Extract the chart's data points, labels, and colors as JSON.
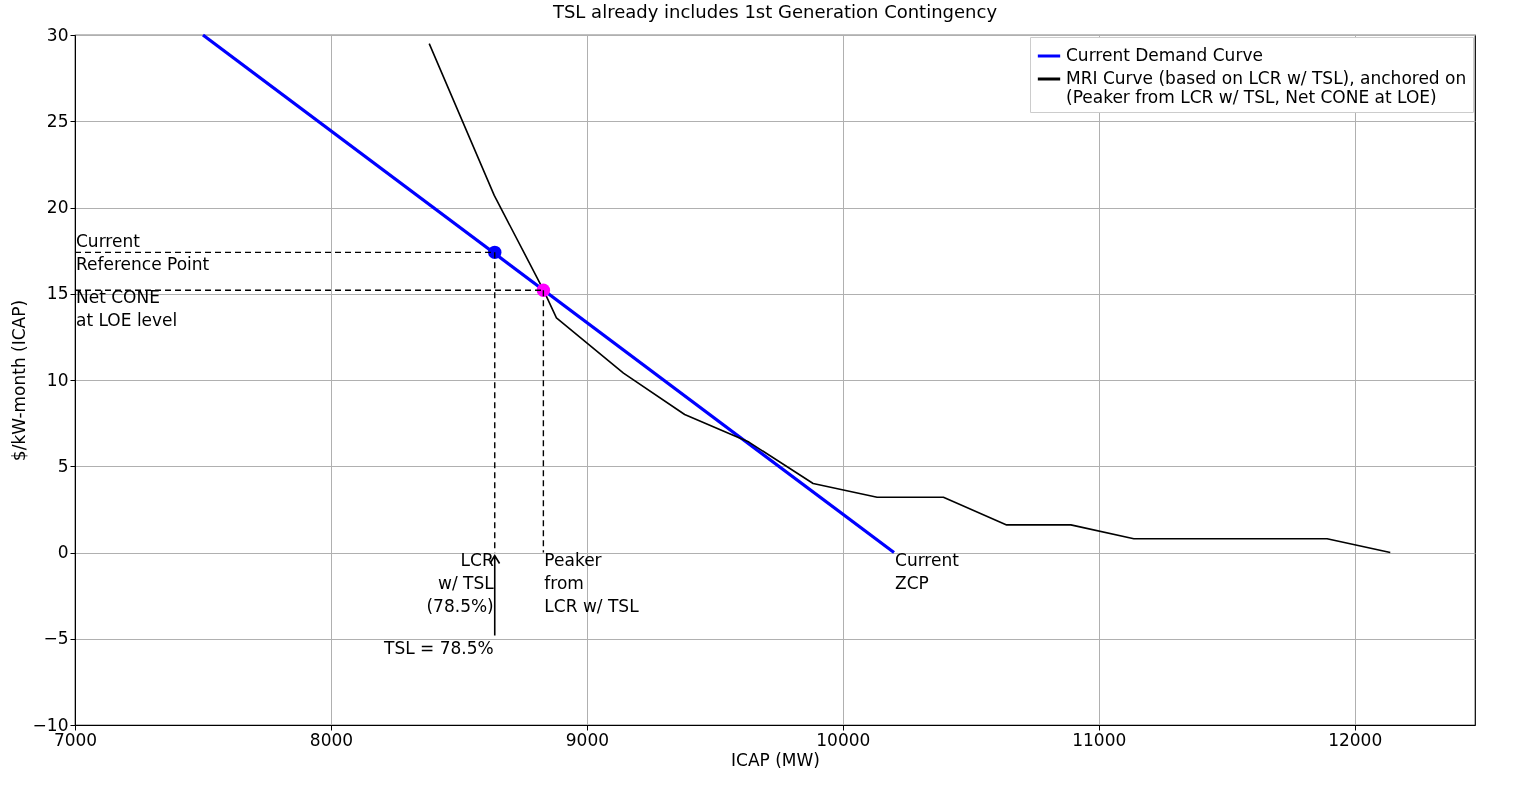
{
  "chart_data": {
    "type": "line",
    "title": "TSL already includes 1st Generation Contingency",
    "xlabel": "ICAP (MW)",
    "ylabel": "$/kW-month (ICAP)",
    "xlim": [
      7000,
      12470
    ],
    "ylim": [
      -10,
      30
    ],
    "xticks": [
      {
        "value": 7000,
        "label": "7000"
      },
      {
        "value": 8000,
        "label": "8000"
      },
      {
        "value": 9000,
        "label": "9000"
      },
      {
        "value": 10000,
        "label": "10000"
      },
      {
        "value": 11000,
        "label": "11000"
      },
      {
        "value": 12000,
        "label": "12000"
      }
    ],
    "yticks": [
      -10,
      -5,
      0,
      5,
      10,
      15,
      20,
      25,
      30
    ],
    "grid": true,
    "legend": "top right",
    "series": [
      {
        "name": "Current Demand Curve",
        "color": "#0000ff",
        "x": [
          7500,
          10200
        ],
        "values": [
          30,
          0
        ]
      },
      {
        "name": "MRI Curve (based on LCR w/ TSL), anchored on\n(Peaker from LCR w/ TSL, Net CONE at LOE)",
        "color": "#000000",
        "x": [
          8384,
          8638,
          8831,
          8881,
          9143,
          9382,
          9633,
          9884,
          10134,
          10393,
          10640,
          10891,
          11137,
          11892,
          12139
        ],
        "values": [
          29.5,
          20.7,
          15.2,
          13.6,
          10.4,
          8.0,
          6.4,
          4.0,
          3.2,
          3.2,
          1.6,
          1.6,
          0.8,
          0.8,
          0
        ]
      },
      {
        "type": "scatter",
        "color": "#0000ff",
        "x": [
          8640
        ],
        "values": [
          17.4
        ]
      },
      {
        "type": "scatter",
        "color": "#ff00ff",
        "x": [
          8830
        ],
        "values": [
          15.2
        ]
      }
    ],
    "annotations": [
      {
        "text": "Current\nReference Point",
        "x": 8640,
        "y": 17.4
      },
      {
        "text": "Net CONE\nat LOE level",
        "x": 8830,
        "y": 15.2
      },
      {
        "text": "LCR\nw/ TSL\n(78.5%)",
        "x": 8640,
        "y": 17.4
      },
      {
        "text": "Peaker\nfrom\nLCR w/ TSL",
        "x": 8830,
        "y": 15.2
      },
      {
        "text": "Current\nZCP",
        "x": 10200,
        "y": 0
      },
      "TSL = 78.5%"
    ]
  }
}
